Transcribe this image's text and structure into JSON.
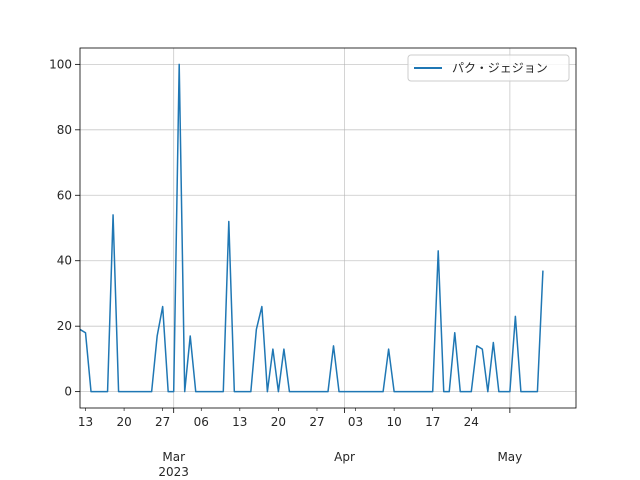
{
  "chart_data": {
    "type": "line",
    "title": "",
    "xlabel": "",
    "ylabel": "",
    "grid": true,
    "legend_position": "top-right",
    "x_range": [
      "2023-02-12",
      "2023-05-13"
    ],
    "ylim": [
      -5,
      105
    ],
    "y_ticks": [
      0,
      20,
      40,
      60,
      80,
      100
    ],
    "x_ticks_minor": [
      {
        "date": "2023-02-13",
        "label": "13"
      },
      {
        "date": "2023-02-20",
        "label": "20"
      },
      {
        "date": "2023-02-27",
        "label": "27"
      },
      {
        "date": "2023-03-06",
        "label": "06"
      },
      {
        "date": "2023-03-13",
        "label": "13"
      },
      {
        "date": "2023-03-20",
        "label": "20"
      },
      {
        "date": "2023-03-27",
        "label": "27"
      },
      {
        "date": "2023-04-03",
        "label": "03"
      },
      {
        "date": "2023-04-10",
        "label": "10"
      },
      {
        "date": "2023-04-17",
        "label": "17"
      },
      {
        "date": "2023-04-24",
        "label": "24"
      }
    ],
    "x_ticks_major": [
      {
        "date": "2023-03-01",
        "label": "Mar",
        "sublabel": "2023"
      },
      {
        "date": "2023-04-01",
        "label": "Apr",
        "sublabel": ""
      },
      {
        "date": "2023-05-01",
        "label": "May",
        "sublabel": ""
      }
    ],
    "series": [
      {
        "name": "パク・ジェジョン",
        "color": "#1f77b4",
        "points": [
          [
            "2023-02-12",
            19
          ],
          [
            "2023-02-13",
            18
          ],
          [
            "2023-02-14",
            0
          ],
          [
            "2023-02-15",
            0
          ],
          [
            "2023-02-16",
            0
          ],
          [
            "2023-02-17",
            0
          ],
          [
            "2023-02-18",
            54
          ],
          [
            "2023-02-19",
            0
          ],
          [
            "2023-02-20",
            0
          ],
          [
            "2023-02-21",
            0
          ],
          [
            "2023-02-22",
            0
          ],
          [
            "2023-02-23",
            0
          ],
          [
            "2023-02-24",
            0
          ],
          [
            "2023-02-25",
            0
          ],
          [
            "2023-02-26",
            17
          ],
          [
            "2023-02-27",
            26
          ],
          [
            "2023-02-28",
            0
          ],
          [
            "2023-03-01",
            0
          ],
          [
            "2023-03-02",
            100
          ],
          [
            "2023-03-03",
            0
          ],
          [
            "2023-03-04",
            17
          ],
          [
            "2023-03-05",
            0
          ],
          [
            "2023-03-06",
            0
          ],
          [
            "2023-03-07",
            0
          ],
          [
            "2023-03-08",
            0
          ],
          [
            "2023-03-09",
            0
          ],
          [
            "2023-03-10",
            0
          ],
          [
            "2023-03-11",
            52
          ],
          [
            "2023-03-12",
            0
          ],
          [
            "2023-03-13",
            0
          ],
          [
            "2023-03-14",
            0
          ],
          [
            "2023-03-15",
            0
          ],
          [
            "2023-03-16",
            19
          ],
          [
            "2023-03-17",
            26
          ],
          [
            "2023-03-18",
            0
          ],
          [
            "2023-03-19",
            13
          ],
          [
            "2023-03-20",
            0
          ],
          [
            "2023-03-21",
            13
          ],
          [
            "2023-03-22",
            0
          ],
          [
            "2023-03-23",
            0
          ],
          [
            "2023-03-24",
            0
          ],
          [
            "2023-03-25",
            0
          ],
          [
            "2023-03-26",
            0
          ],
          [
            "2023-03-27",
            0
          ],
          [
            "2023-03-28",
            0
          ],
          [
            "2023-03-29",
            0
          ],
          [
            "2023-03-30",
            14
          ],
          [
            "2023-03-31",
            0
          ],
          [
            "2023-04-01",
            0
          ],
          [
            "2023-04-02",
            0
          ],
          [
            "2023-04-03",
            0
          ],
          [
            "2023-04-04",
            0
          ],
          [
            "2023-04-05",
            0
          ],
          [
            "2023-04-06",
            0
          ],
          [
            "2023-04-07",
            0
          ],
          [
            "2023-04-08",
            0
          ],
          [
            "2023-04-09",
            13
          ],
          [
            "2023-04-10",
            0
          ],
          [
            "2023-04-11",
            0
          ],
          [
            "2023-04-12",
            0
          ],
          [
            "2023-04-13",
            0
          ],
          [
            "2023-04-14",
            0
          ],
          [
            "2023-04-15",
            0
          ],
          [
            "2023-04-16",
            0
          ],
          [
            "2023-04-17",
            0
          ],
          [
            "2023-04-18",
            43
          ],
          [
            "2023-04-19",
            0
          ],
          [
            "2023-04-20",
            0
          ],
          [
            "2023-04-21",
            18
          ],
          [
            "2023-04-22",
            0
          ],
          [
            "2023-04-23",
            0
          ],
          [
            "2023-04-24",
            0
          ],
          [
            "2023-04-25",
            14
          ],
          [
            "2023-04-26",
            13
          ],
          [
            "2023-04-27",
            0
          ],
          [
            "2023-04-28",
            15
          ],
          [
            "2023-04-29",
            0
          ],
          [
            "2023-04-30",
            0
          ],
          [
            "2023-05-01",
            0
          ],
          [
            "2023-05-02",
            23
          ],
          [
            "2023-05-03",
            0
          ],
          [
            "2023-05-04",
            0
          ],
          [
            "2023-05-05",
            0
          ],
          [
            "2023-05-06",
            0
          ],
          [
            "2023-05-07",
            37
          ]
        ]
      }
    ]
  }
}
